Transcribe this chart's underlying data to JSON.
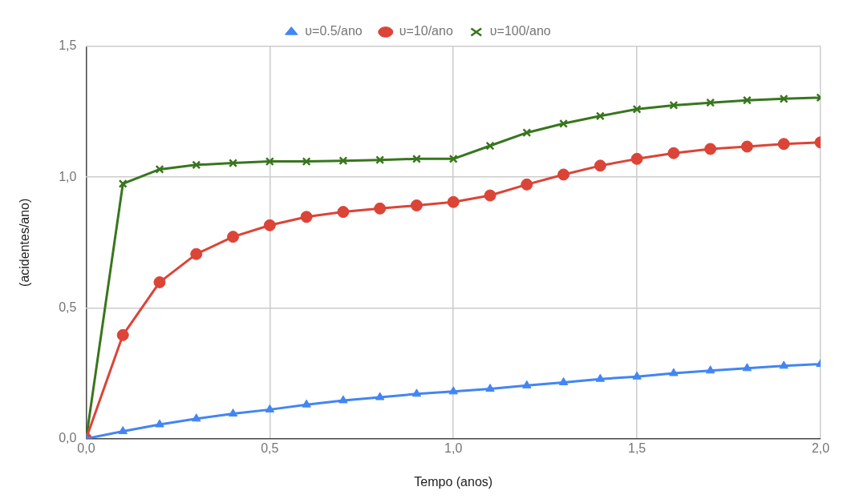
{
  "chart_data": {
    "type": "line",
    "xlabel": "Tempo (anos)",
    "ylabel": "(acidentes/ano)",
    "x": [
      0,
      0.1,
      0.2,
      0.3,
      0.4,
      0.5,
      0.6,
      0.7,
      0.8,
      0.9,
      1.0,
      1.1,
      1.2,
      1.3,
      1.4,
      1.5,
      1.6,
      1.7,
      1.8,
      1.9,
      2.0
    ],
    "series": [
      {
        "name": "υ=0.5/ano",
        "color": "#4285f4",
        "marker": "triangle",
        "values": [
          0,
          0.028,
          0.054,
          0.076,
          0.095,
          0.111,
          0.13,
          0.146,
          0.158,
          0.171,
          0.18,
          0.19,
          0.203,
          0.215,
          0.228,
          0.237,
          0.25,
          0.26,
          0.269,
          0.278,
          0.285
        ]
      },
      {
        "name": "υ=10/ano",
        "color": "#db4437",
        "marker": "circle",
        "values": [
          0,
          0.396,
          0.598,
          0.706,
          0.772,
          0.816,
          0.848,
          0.867,
          0.88,
          0.892,
          0.905,
          0.93,
          0.972,
          1.01,
          1.044,
          1.07,
          1.092,
          1.108,
          1.117,
          1.127,
          1.133
        ]
      },
      {
        "name": "υ=100/ano",
        "color": "#38761d",
        "marker": "cross",
        "values": [
          0,
          0.975,
          1.03,
          1.047,
          1.054,
          1.06,
          1.06,
          1.063,
          1.066,
          1.07,
          1.07,
          1.12,
          1.17,
          1.205,
          1.234,
          1.26,
          1.275,
          1.285,
          1.294,
          1.3,
          1.304
        ]
      }
    ],
    "xlim": [
      0,
      2
    ],
    "ylim": [
      0,
      1.5
    ],
    "xticks": [
      {
        "value": 0,
        "label": "0,0"
      },
      {
        "value": 0.5,
        "label": "0,5"
      },
      {
        "value": 1,
        "label": "1,0"
      },
      {
        "value": 1.5,
        "label": "1,5"
      },
      {
        "value": 2,
        "label": "2,0"
      }
    ],
    "yticks": [
      {
        "value": 0,
        "label": "0,0"
      },
      {
        "value": 0.5,
        "label": "0,5"
      },
      {
        "value": 1,
        "label": "1,0"
      },
      {
        "value": 1.5,
        "label": "1,5"
      }
    ],
    "grid": true,
    "legend": "top",
    "line_style": "solid"
  }
}
